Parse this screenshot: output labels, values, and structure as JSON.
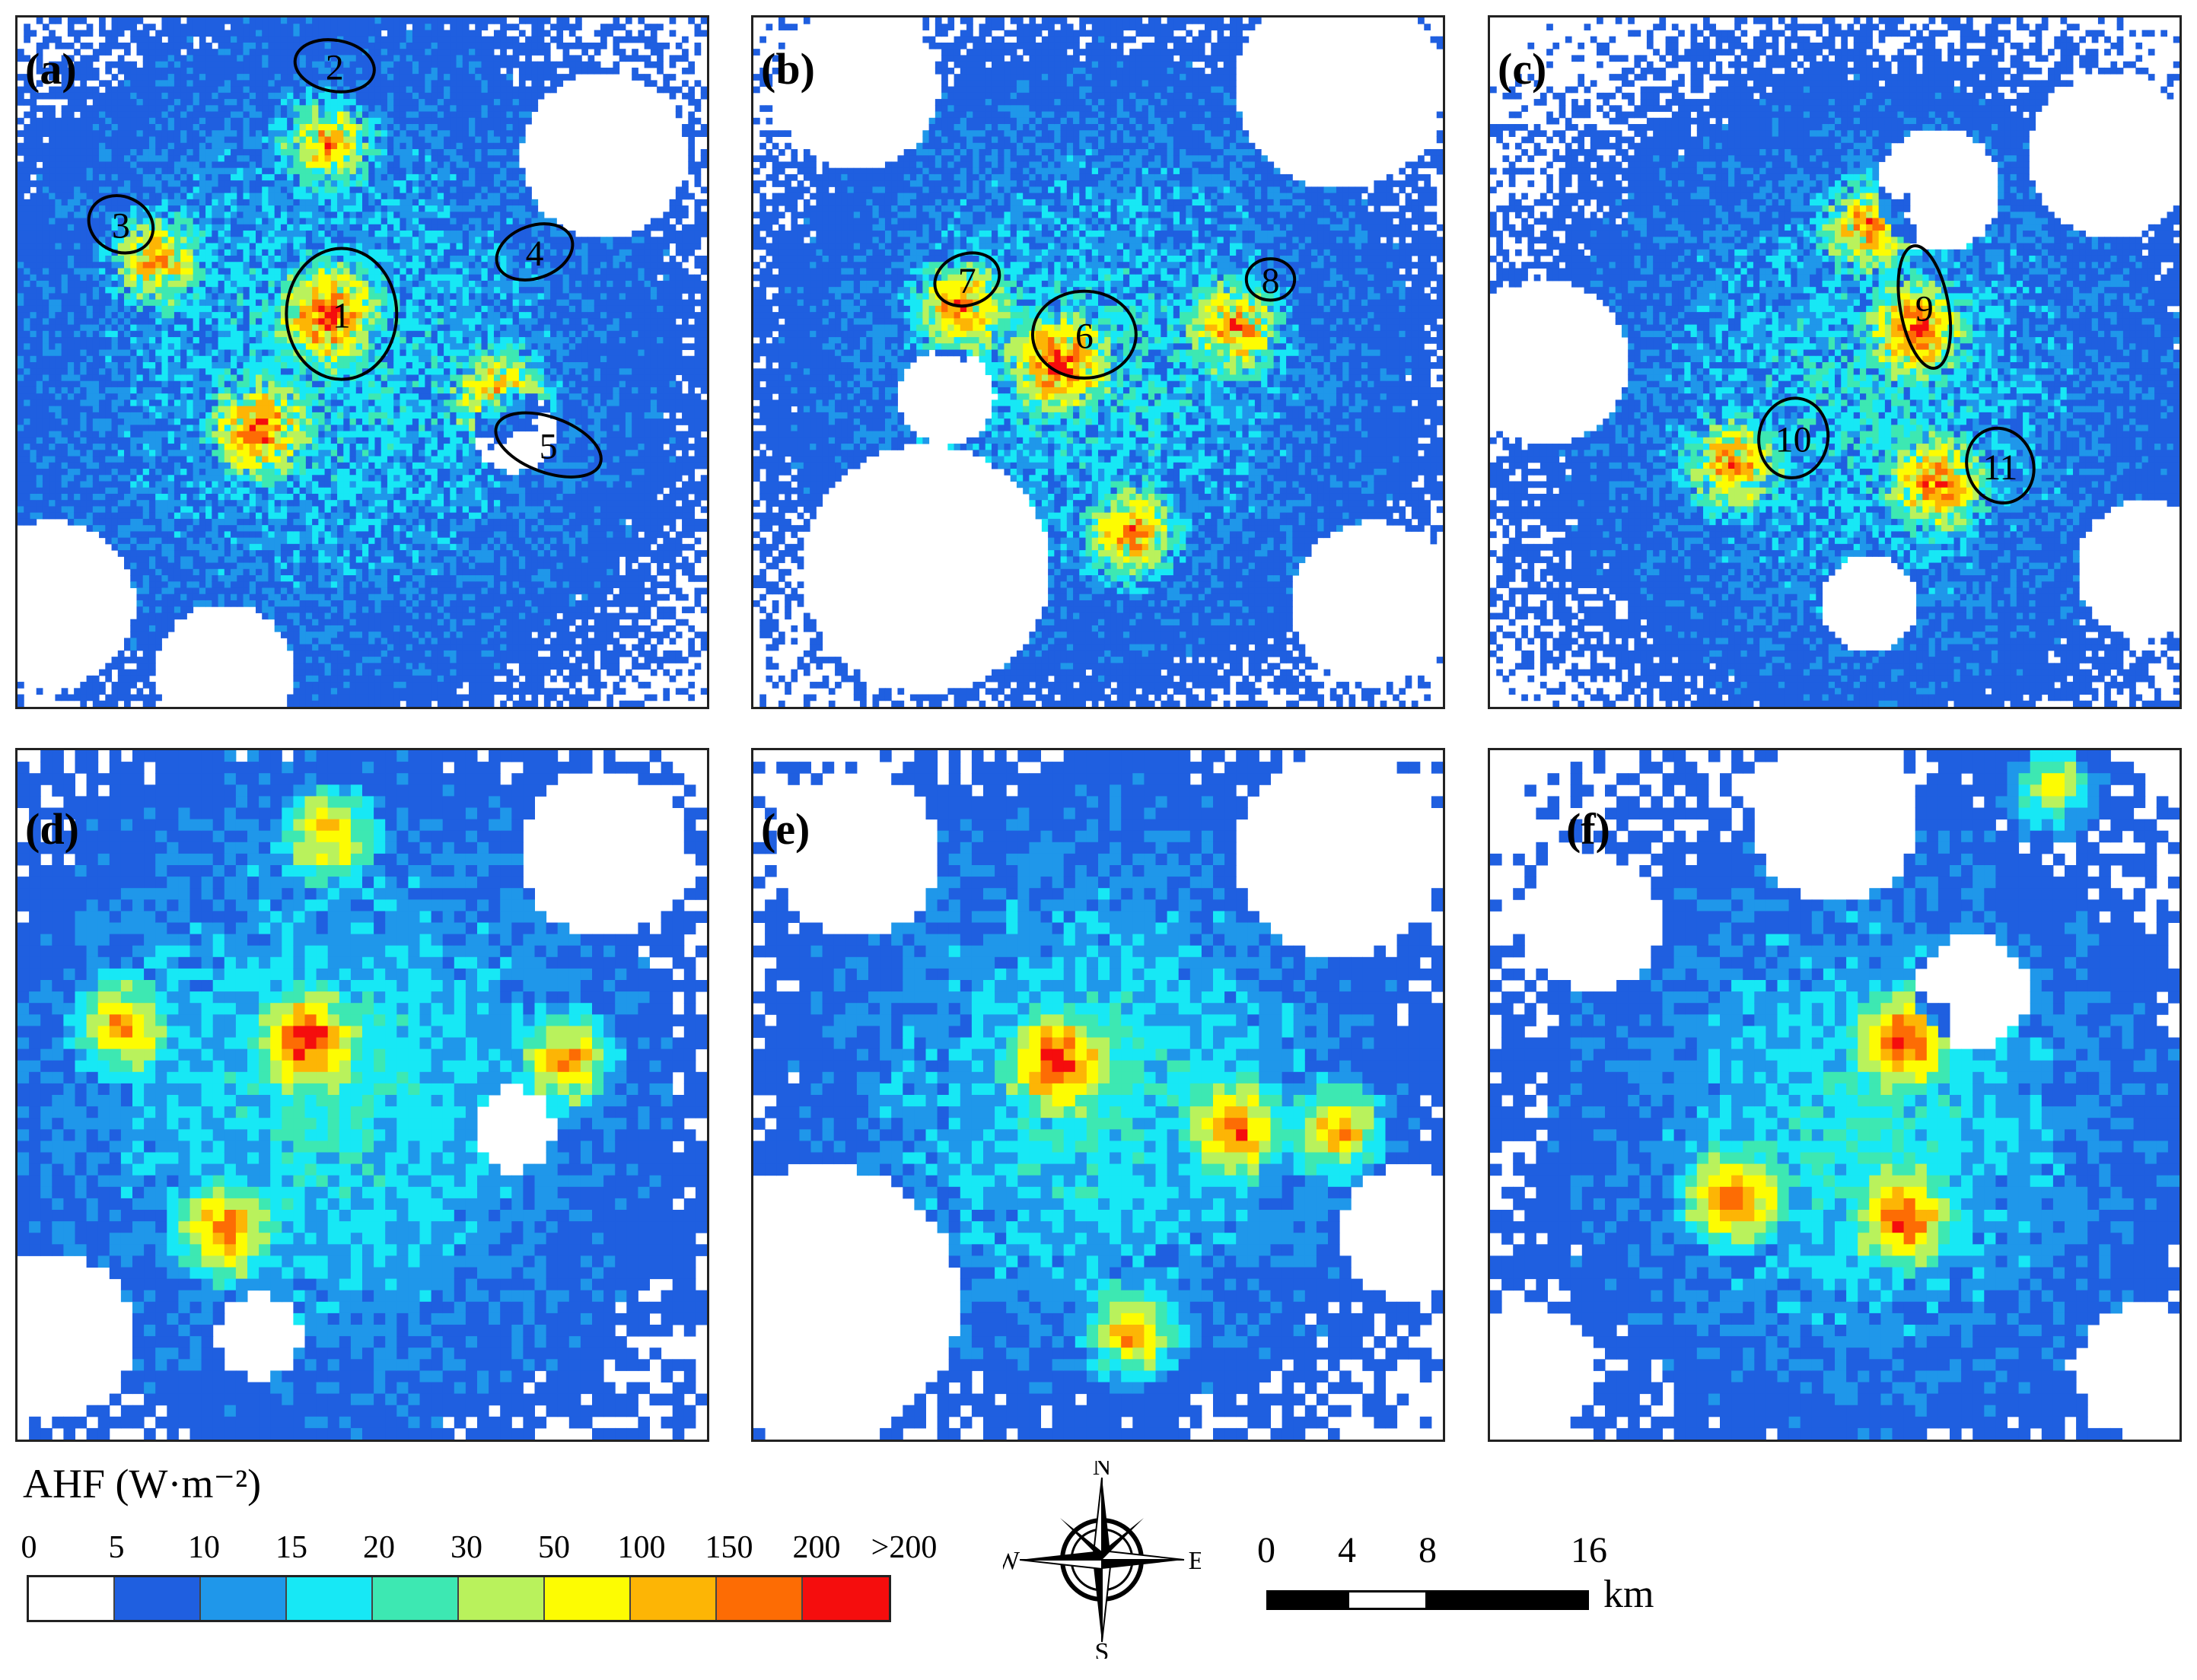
{
  "panels": [
    {
      "label": "(a)",
      "key": "a",
      "style": "fine"
    },
    {
      "label": "(b)",
      "key": "b",
      "style": "fine"
    },
    {
      "label": "(c)",
      "key": "c",
      "style": "fine"
    },
    {
      "label": "(d)",
      "key": "d",
      "style": "coarse"
    },
    {
      "label": "(e)",
      "key": "e",
      "style": "coarse"
    },
    {
      "label": "(f)",
      "key": "f",
      "style": "coarse"
    }
  ],
  "annotations": [
    {
      "panel": "a",
      "label": "1"
    },
    {
      "panel": "a",
      "label": "2"
    },
    {
      "panel": "a",
      "label": "3"
    },
    {
      "panel": "a",
      "label": "4"
    },
    {
      "panel": "a",
      "label": "5"
    },
    {
      "panel": "b",
      "label": "6"
    },
    {
      "panel": "b",
      "label": "7"
    },
    {
      "panel": "b",
      "label": "8"
    },
    {
      "panel": "c",
      "label": "9"
    },
    {
      "panel": "c",
      "label": "10"
    },
    {
      "panel": "c",
      "label": "11"
    }
  ],
  "legend": {
    "title": "AHF (W·m⁻²)",
    "breaks": [
      "0",
      "5",
      "10",
      "15",
      "20",
      "30",
      "50",
      "100",
      "150",
      "200",
      ">200"
    ],
    "colors": [
      "#ffffff",
      "#1f5fe0",
      "#1f97ea",
      "#17e8f5",
      "#3de8b2",
      "#b9f25c",
      "#fdfc02",
      "#fdb505",
      "#fd6c04",
      "#f50d0d"
    ]
  },
  "compass": {
    "n": "N",
    "s": "S",
    "e": "E",
    "w": "W"
  },
  "scale_bar": {
    "ticks": [
      "0",
      "4",
      "8",
      "16"
    ],
    "unit": "km"
  }
}
